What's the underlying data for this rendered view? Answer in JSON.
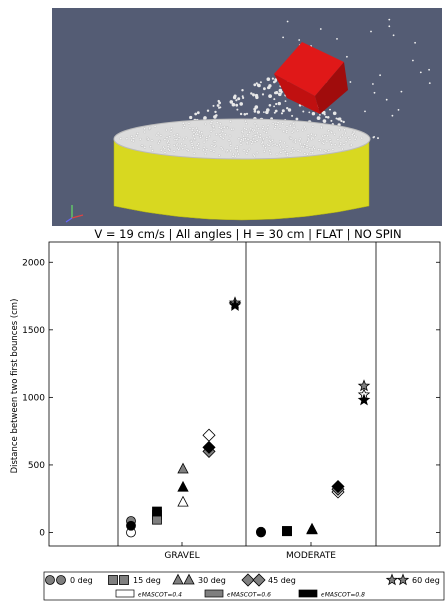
{
  "simulation": {
    "background": "#545c74",
    "cylinder_color": "#d8d820",
    "grains_color": "#e8e8e8",
    "cube_color": "#c81414",
    "axes_icon": "xyz-axes-icon"
  },
  "chart_data": {
    "type": "scatter",
    "title": "V = 19 cm/s | All angles | H = 30 cm | FLAT | NO SPIN",
    "ylabel": "Distance between two first bounces (cm)",
    "xlabel": "",
    "categories": [
      "GRAVEL",
      "MODERATE"
    ],
    "ylim": [
      -100,
      2150
    ],
    "yticks": [
      0,
      500,
      1000,
      1500,
      2000
    ],
    "grid": false,
    "legend_position": "bottom",
    "legend_angles": [
      {
        "label": "0 deg",
        "marker": "circle"
      },
      {
        "label": "15 deg",
        "marker": "square"
      },
      {
        "label": "30 deg",
        "marker": "triangle"
      },
      {
        "label": "45 deg",
        "marker": "diamond"
      },
      {
        "label": "60 deg",
        "marker": "star"
      }
    ],
    "legend_mascot": [
      {
        "label": "ϵMASCOT=0.4",
        "fill": "#ffffff"
      },
      {
        "label": "ϵMASCOT=0.6",
        "fill": "#7f7f7f"
      },
      {
        "label": "ϵMASCOT=0.8",
        "fill": "#000000"
      }
    ],
    "series": [
      {
        "category": "GRAVEL",
        "angle": 0,
        "eps": 0.4,
        "value": 0
      },
      {
        "category": "GRAVEL",
        "angle": 0,
        "eps": 0.6,
        "value": 85
      },
      {
        "category": "GRAVEL",
        "angle": 0,
        "eps": 0.8,
        "value": 50
      },
      {
        "category": "GRAVEL",
        "angle": 15,
        "eps": 0.4,
        "value": 130
      },
      {
        "category": "GRAVEL",
        "angle": 15,
        "eps": 0.6,
        "value": 95
      },
      {
        "category": "GRAVEL",
        "angle": 15,
        "eps": 0.8,
        "value": 155
      },
      {
        "category": "GRAVEL",
        "angle": 30,
        "eps": 0.4,
        "value": 225
      },
      {
        "category": "GRAVEL",
        "angle": 30,
        "eps": 0.6,
        "value": 470
      },
      {
        "category": "GRAVEL",
        "angle": 30,
        "eps": 0.8,
        "value": 335
      },
      {
        "category": "GRAVEL",
        "angle": 45,
        "eps": 0.4,
        "value": 720
      },
      {
        "category": "GRAVEL",
        "angle": 45,
        "eps": 0.6,
        "value": 600
      },
      {
        "category": "GRAVEL",
        "angle": 45,
        "eps": 0.8,
        "value": 630
      },
      {
        "category": "GRAVEL",
        "angle": 60,
        "eps": 0.4,
        "value": 1690
      },
      {
        "category": "GRAVEL",
        "angle": 60,
        "eps": 0.6,
        "value": 1700
      },
      {
        "category": "GRAVEL",
        "angle": 60,
        "eps": 0.8,
        "value": 1680
      },
      {
        "category": "MODERATE",
        "angle": 0,
        "eps": 0.4,
        "value": 5
      },
      {
        "category": "MODERATE",
        "angle": 0,
        "eps": 0.6,
        "value": 5
      },
      {
        "category": "MODERATE",
        "angle": 0,
        "eps": 0.8,
        "value": 0
      },
      {
        "category": "MODERATE",
        "angle": 15,
        "eps": 0.4,
        "value": 10
      },
      {
        "category": "MODERATE",
        "angle": 15,
        "eps": 0.6,
        "value": 10
      },
      {
        "category": "MODERATE",
        "angle": 15,
        "eps": 0.8,
        "value": 10
      },
      {
        "category": "MODERATE",
        "angle": 30,
        "eps": 0.4,
        "value": 20
      },
      {
        "category": "MODERATE",
        "angle": 30,
        "eps": 0.6,
        "value": 20
      },
      {
        "category": "MODERATE",
        "angle": 30,
        "eps": 0.8,
        "value": 25
      },
      {
        "category": "MODERATE",
        "angle": 45,
        "eps": 0.4,
        "value": 300
      },
      {
        "category": "MODERATE",
        "angle": 45,
        "eps": 0.6,
        "value": 320
      },
      {
        "category": "MODERATE",
        "angle": 45,
        "eps": 0.8,
        "value": 340
      },
      {
        "category": "MODERATE",
        "angle": 60,
        "eps": 0.4,
        "value": 1020
      },
      {
        "category": "MODERATE",
        "angle": 60,
        "eps": 0.6,
        "value": 1085
      },
      {
        "category": "MODERATE",
        "angle": 60,
        "eps": 0.8,
        "value": 980
      }
    ],
    "colors": {
      "0.4": "#ffffff",
      "0.6": "#7f7f7f",
      "0.8": "#000000"
    }
  }
}
